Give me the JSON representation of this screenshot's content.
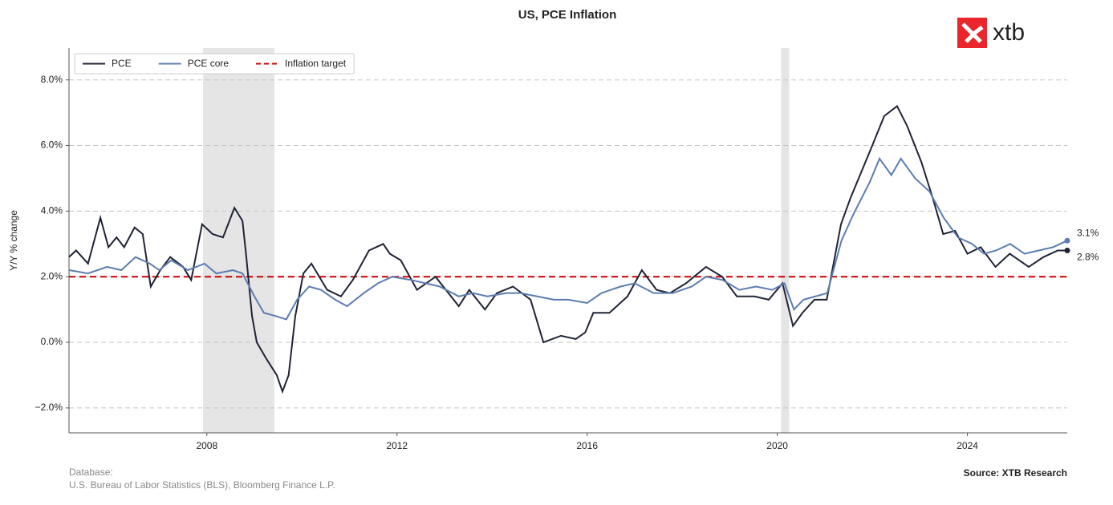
{
  "chart_data": {
    "type": "line",
    "title": "US, PCE Inflation",
    "y_label": "Y/Y % change",
    "xlim": [
      2005.1,
      2026.1
    ],
    "xticks": [
      2008,
      2012,
      2016,
      2020,
      2024
    ],
    "ylim": [
      -2.76,
      8.97
    ],
    "yticks": [
      {
        "value": -2,
        "label": "−2.0%"
      },
      {
        "value": 0,
        "label": "0.0%"
      },
      {
        "value": 2,
        "label": "2.0%"
      },
      {
        "value": 4,
        "label": "4.0%"
      },
      {
        "value": 6,
        "label": "6.0%"
      },
      {
        "value": 8,
        "label": "8.0%"
      }
    ],
    "grid": true,
    "legend": "upper left",
    "shaded_periods": [
      [
        2007.92,
        2009.42
      ],
      [
        2020.08,
        2020.25
      ]
    ],
    "shade_color": "#e5e5e5",
    "target": {
      "name": "Inflation target",
      "value": 2,
      "color": "#cc0000"
    },
    "series": [
      {
        "name": "PCE",
        "color": "#1f2335",
        "end_label": "2.8%",
        "x": [
          2005.1,
          2005.25,
          2005.5,
          2005.76,
          2005.93,
          2006.1,
          2006.26,
          2006.48,
          2006.65,
          2006.82,
          2007.02,
          2007.23,
          2007.5,
          2007.67,
          2007.9,
          2008.12,
          2008.34,
          2008.58,
          2008.75,
          2008.83,
          2008.95,
          2009.05,
          2009.25,
          2009.47,
          2009.59,
          2009.72,
          2009.86,
          2010.03,
          2010.2,
          2010.53,
          2010.82,
          2011.07,
          2011.41,
          2011.71,
          2011.85,
          2012.08,
          2012.42,
          2012.81,
          2013.3,
          2013.52,
          2013.85,
          2014.1,
          2014.44,
          2014.81,
          2015.08,
          2015.45,
          2015.76,
          2015.96,
          2016.13,
          2016.47,
          2016.85,
          2017.15,
          2017.46,
          2017.74,
          2018.08,
          2018.5,
          2018.84,
          2019.15,
          2019.52,
          2019.82,
          2020.11,
          2020.33,
          2020.53,
          2020.78,
          2021.04,
          2021.34,
          2021.54,
          2021.97,
          2022.25,
          2022.52,
          2022.73,
          2023.03,
          2023.27,
          2023.49,
          2023.74,
          2024.0,
          2024.28,
          2024.59,
          2024.89,
          2025.29,
          2025.6,
          2025.9,
          2026.1
        ],
        "values": [
          2.6,
          2.8,
          2.4,
          3.8,
          2.9,
          3.2,
          2.9,
          3.5,
          3.3,
          1.7,
          2.2,
          2.6,
          2.3,
          1.9,
          3.6,
          3.3,
          3.2,
          4.1,
          3.7,
          2.6,
          0.8,
          0.0,
          -0.5,
          -1.0,
          -1.5,
          -1.0,
          0.8,
          2.1,
          2.4,
          1.6,
          1.4,
          1.9,
          2.8,
          3.0,
          2.7,
          2.5,
          1.6,
          2.0,
          1.1,
          1.6,
          1.0,
          1.5,
          1.7,
          1.3,
          0.0,
          0.2,
          0.1,
          0.3,
          0.9,
          0.9,
          1.4,
          2.2,
          1.6,
          1.5,
          1.8,
          2.3,
          2.0,
          1.4,
          1.4,
          1.3,
          1.8,
          0.5,
          0.9,
          1.3,
          1.3,
          3.6,
          4.4,
          5.9,
          6.9,
          7.2,
          6.6,
          5.5,
          4.4,
          3.3,
          3.4,
          2.7,
          2.9,
          2.3,
          2.7,
          2.3,
          2.6,
          2.8,
          2.8
        ]
      },
      {
        "name": "PCE core",
        "color": "#5b7db1",
        "end_label": "3.1%",
        "x": [
          2005.1,
          2005.5,
          2005.9,
          2006.2,
          2006.5,
          2006.8,
          2007.0,
          2007.25,
          2007.6,
          2007.95,
          2008.2,
          2008.55,
          2008.75,
          2009.0,
          2009.2,
          2009.45,
          2009.67,
          2009.9,
          2010.15,
          2010.4,
          2010.7,
          2010.95,
          2011.3,
          2011.6,
          2011.9,
          2012.3,
          2012.6,
          2012.9,
          2013.3,
          2013.6,
          2013.9,
          2014.3,
          2014.6,
          2014.95,
          2015.3,
          2015.6,
          2016.0,
          2016.3,
          2016.7,
          2017.0,
          2017.4,
          2017.8,
          2018.2,
          2018.5,
          2018.85,
          2019.2,
          2019.55,
          2019.9,
          2020.15,
          2020.35,
          2020.55,
          2020.8,
          2021.05,
          2021.35,
          2021.6,
          2021.95,
          2022.15,
          2022.4,
          2022.6,
          2022.9,
          2023.2,
          2023.5,
          2023.8,
          2024.1,
          2024.35,
          2024.6,
          2024.9,
          2025.2,
          2025.5,
          2025.8,
          2026.1
        ],
        "values": [
          2.2,
          2.1,
          2.3,
          2.2,
          2.6,
          2.4,
          2.2,
          2.5,
          2.2,
          2.4,
          2.1,
          2.2,
          2.1,
          1.4,
          0.9,
          0.8,
          0.7,
          1.3,
          1.7,
          1.6,
          1.3,
          1.1,
          1.5,
          1.8,
          2.0,
          1.9,
          1.8,
          1.7,
          1.4,
          1.5,
          1.4,
          1.5,
          1.5,
          1.4,
          1.3,
          1.3,
          1.2,
          1.5,
          1.7,
          1.8,
          1.5,
          1.5,
          1.7,
          2.0,
          1.9,
          1.6,
          1.7,
          1.6,
          1.8,
          1.0,
          1.3,
          1.4,
          1.5,
          3.1,
          3.9,
          4.9,
          5.6,
          5.1,
          5.6,
          5.0,
          4.6,
          3.8,
          3.2,
          3.0,
          2.7,
          2.8,
          3.0,
          2.7,
          2.8,
          2.9,
          3.1
        ]
      }
    ],
    "logo": "xtb",
    "footer_title": "Database:",
    "footer_source": "U.S. Bureau of Labor Statistics (BLS), Bloomberg Finance L.P.",
    "credit": "Source: XTB Research"
  }
}
